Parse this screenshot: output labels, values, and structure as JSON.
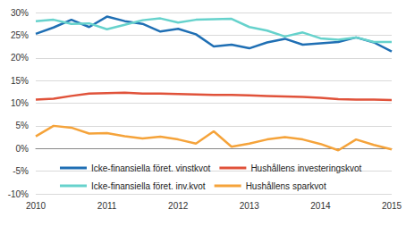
{
  "chart_data": {
    "type": "line",
    "categories": [
      "2010",
      null,
      null,
      null,
      "2011",
      null,
      null,
      null,
      "2012",
      null,
      null,
      null,
      "2013",
      null,
      null,
      null,
      "2014",
      null,
      null,
      null,
      "2015"
    ],
    "series": [
      {
        "name": "Icke-finansiella föret. vinstkvot",
        "color": "#1f6fb4",
        "values": [
          25.3,
          26.7,
          28.4,
          26.8,
          29.1,
          28.1,
          27.5,
          25.8,
          26.4,
          25.2,
          22.5,
          22.9,
          22.1,
          23.4,
          24.2,
          22.9,
          23.2,
          23.5,
          24.5,
          23.4,
          21.4
        ]
      },
      {
        "name": "Hushållens investeringskvot",
        "color": "#e0523a",
        "values": [
          10.8,
          11.0,
          11.6,
          12.1,
          12.2,
          12.3,
          12.1,
          12.1,
          12.0,
          11.9,
          11.8,
          11.8,
          11.7,
          11.6,
          11.5,
          11.4,
          11.2,
          10.9,
          10.8,
          10.8,
          10.7
        ]
      },
      {
        "name": "Icke-finansiella föret. inv.kvot",
        "color": "#66d2cc",
        "values": [
          28.1,
          28.4,
          27.5,
          27.6,
          26.3,
          27.3,
          28.3,
          28.7,
          27.8,
          28.4,
          28.5,
          28.6,
          26.8,
          26.0,
          24.7,
          25.6,
          24.3,
          24.0,
          24.5,
          23.5,
          23.5
        ]
      },
      {
        "name": "Hushållens sparkvot",
        "color": "#f5a33a",
        "values": [
          2.7,
          5.0,
          4.6,
          3.3,
          3.4,
          2.7,
          2.2,
          2.6,
          2.0,
          1.1,
          3.8,
          0.4,
          1.1,
          2.0,
          2.5,
          2.0,
          1.0,
          -0.4,
          2.0,
          0.8,
          -0.2
        ]
      }
    ],
    "ylim": [
      -10,
      30
    ],
    "yticks": [
      {
        "value": -10,
        "label": "-10%"
      },
      {
        "value": -5,
        "label": "-5%"
      },
      {
        "value": 0,
        "label": "0%"
      },
      {
        "value": 5,
        "label": "5%"
      },
      {
        "value": 10,
        "label": "10%"
      },
      {
        "value": 15,
        "label": "15%"
      },
      {
        "value": 20,
        "label": "20%"
      },
      {
        "value": 25,
        "label": "25%"
      },
      {
        "value": 30,
        "label": "30%"
      }
    ],
    "grid": true,
    "legend": "bottom"
  }
}
